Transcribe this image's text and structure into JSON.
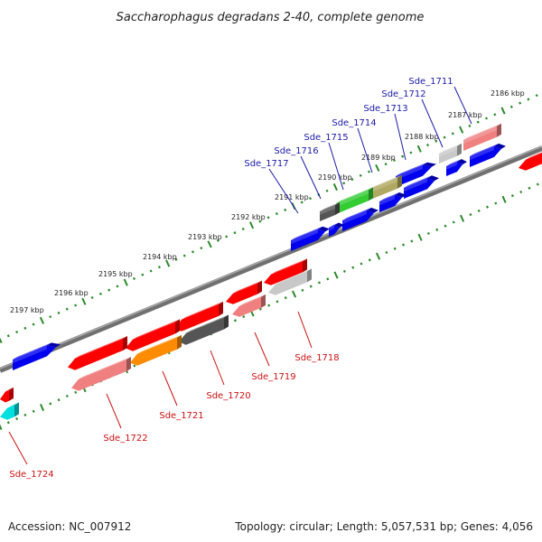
{
  "title": "Saccharophagus degradans 2-40, complete genome",
  "footer": {
    "accession": "Accession: NC_007912",
    "summary": "Topology: circular; Length: 5,057,531 bp; Genes: 4,056"
  },
  "colors": {
    "background": "#ffffff",
    "backbone": "#808080",
    "ticks": "#2a8a2a",
    "forward_label": "#1a1aaa",
    "reverse_label": "#cc1111",
    "red": "#ff0000",
    "light_red": "#f08080",
    "blue": "#0000ee",
    "green": "#33cc33",
    "olive": "#b0a860",
    "dark_gray": "#555555",
    "light_gray": "#c8c8c8",
    "orange": "#ff8c00",
    "cyan": "#00e0e0"
  },
  "kbp_ticks": [
    "2186 kbp",
    "2187 kbp",
    "2188 kbp",
    "2189 kbp",
    "2190 kbp",
    "2191 kbp",
    "2192 kbp",
    "2193 kbp",
    "2194 kbp",
    "2195 kbp",
    "2196 kbp",
    "2197 kbp"
  ],
  "forward_genes": [
    {
      "label": "Sde_1711",
      "color": "light_red"
    },
    {
      "label": "Sde_1712",
      "color": "light_gray"
    },
    {
      "label": "Sde_1713",
      "color": "blue"
    },
    {
      "label": "Sde_1714",
      "color": "olive"
    },
    {
      "label": "Sde_1715",
      "color": "green"
    },
    {
      "label": "Sde_1716",
      "color": "dark_gray"
    },
    {
      "label": "Sde_1717",
      "color": "blue"
    }
  ],
  "reverse_genes": [
    {
      "label": "Sde_1718",
      "color": "light_gray"
    },
    {
      "label": "Sde_1719",
      "color": "light_red"
    },
    {
      "label": "Sde_1720",
      "color": "dark_gray"
    },
    {
      "label": "Sde_1721",
      "color": "orange"
    },
    {
      "label": "Sde_1722",
      "color": "light_red"
    },
    {
      "label": "Sde_1724",
      "color": "cyan"
    }
  ]
}
